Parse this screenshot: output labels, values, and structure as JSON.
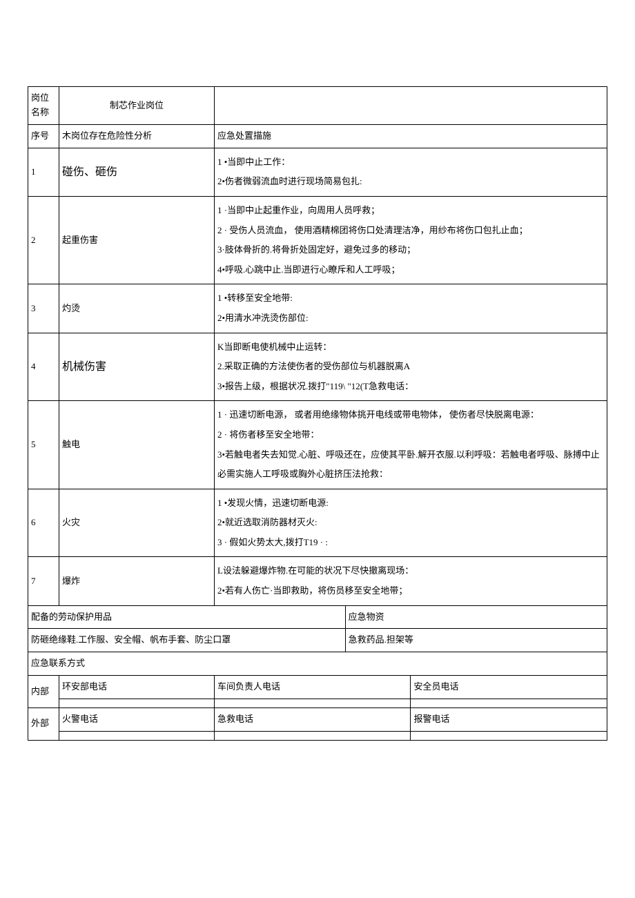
{
  "header": {
    "position_label": "岗位名称",
    "position_value": "制芯作业岗位"
  },
  "columns": {
    "seq": "序号",
    "risk": "木岗位存在危险性分析",
    "measure": "应急处置描施"
  },
  "rows": [
    {
      "seq": "1",
      "risk": "碰伤、砸伤",
      "measure": "1 •当即中止工作：\n2•伤者微弱流血时进行现场简易包扎:"
    },
    {
      "seq": "2",
      "risk": "起重伤害",
      "measure": "1 ·当即中止起重作业，向周用人员呼救；\n2 · 受伤人员流血， 使用酒精棉团将伤口处清理洁净，用纱布将伤口包扎止血；\n3·肢体骨折的.将骨折处固定好，避免过多的移动；\n4•呼吸.心跳中止.当即进行心瞭斥和人工呼吸；"
    },
    {
      "seq": "3",
      "risk": "灼烫",
      "measure": "1 •转移至安全地带:\n2•用清水冲洗烫伤部位:"
    },
    {
      "seq": "4",
      "risk": "机械伤害",
      "measure": "K当即断电使机械中止运转：\n2.采取正确的方法使伤者的受伤部位与机器脱离A\n3•报告上级，根据状况.拨打\"119\\ \"12(T急救电话："
    },
    {
      "seq": "5",
      "risk": "触电",
      "measure": "1 · 迅速切断电源， 或者用绝缘物体挑开电线或带电物体， 使伤者尽快脱离电源：\n2 · 将伤者移至安全地带：\n3•若触电者失去知觉.心脏、呼吸还在，应使其平卧.解开衣服.以利呼吸：若触电者呼吸、脉搏中止 必需实施人工呼吸或胸外心脏挤压法抢救："
    },
    {
      "seq": "6",
      "risk": "火灾",
      "measure": "1 •发现火情，迅速切断电源:\n2•就近选取消防器材灭火:\n3 · 假如火势太大,拨打T19 · :"
    },
    {
      "seq": "7",
      "risk": "爆炸",
      "measure": "L设法躲避爆炸物.在可能的状况下尽快撤离现场：\n2•若有人伤亡·当即救助，将伤员移至安全地带；"
    }
  ],
  "equipment": {
    "ppe_label": "配备的劳动保护用品",
    "supply_label": "应急物资",
    "ppe_value": "防砸绝缘鞋.工作服、安全帽、帆布手套、防尘口罩",
    "supply_value": "急救药品.担架等"
  },
  "contact": {
    "title": "应急联系方式",
    "internal_label": "内部",
    "external_label": "外部",
    "internal": {
      "col1": "环安部电话",
      "col2": "车间负责人电话",
      "col3": "安全员电话"
    },
    "external": {
      "col1": "火警电话",
      "col2": "急救电话",
      "col3": "报警电话"
    }
  },
  "styling": {
    "border_color": "#000000",
    "background_color": "#ffffff",
    "text_color": "#000000",
    "base_font_size": 13,
    "emphasis_font_size": 16,
    "font_family": "SimSun"
  }
}
